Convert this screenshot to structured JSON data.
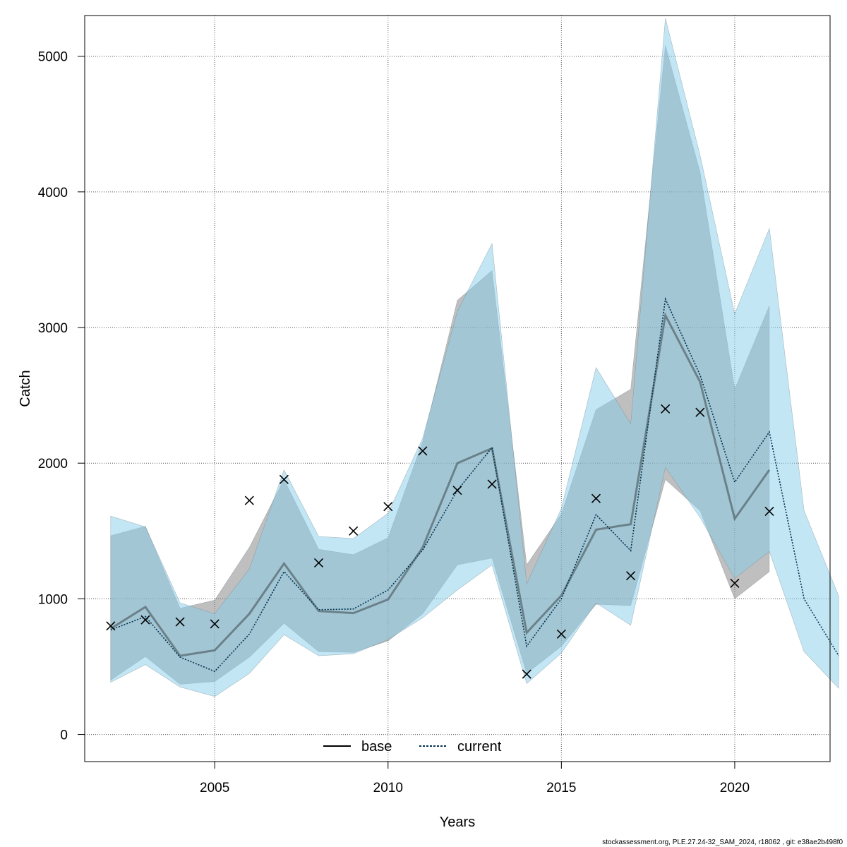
{
  "chart_data": {
    "type": "line",
    "xlabel": "Years",
    "ylabel": "Catch",
    "xlim": [
      2001.25,
      2022.75
    ],
    "ylim": [
      -200,
      5300
    ],
    "x_ticks": [
      2005,
      2010,
      2015,
      2020
    ],
    "y_ticks": [
      0,
      1000,
      2000,
      3000,
      4000,
      5000
    ],
    "grid": true,
    "legend_position": "bottom-center",
    "footer": "stockassessment.org, PLE.27.24-32_SAM_2024, r18062 , git: e38ae2b498f0",
    "colors": {
      "base_line": "#000000",
      "base_band": "#808080",
      "current_line": "#00334d",
      "current_band": "#87ceeb",
      "grid": "#555555"
    },
    "series": [
      {
        "name": "base",
        "style": "solid",
        "x": [
          2002,
          2003,
          2004,
          2005,
          2006,
          2007,
          2008,
          2009,
          2010,
          2011,
          2012,
          2013,
          2014,
          2015,
          2016,
          2017,
          2018,
          2019,
          2020,
          2021
        ],
        "values": [
          780,
          940,
          580,
          620,
          890,
          1260,
          910,
          895,
          995,
          1380,
          2000,
          2110,
          750,
          1025,
          1510,
          1550,
          3090,
          2600,
          1590,
          1950
        ],
        "lower": [
          400,
          575,
          370,
          390,
          570,
          820,
          610,
          605,
          690,
          890,
          1250,
          1300,
          450,
          650,
          960,
          950,
          1880,
          1650,
          1000,
          1200
        ],
        "upper": [
          1465,
          1535,
          930,
          990,
          1380,
          1880,
          1365,
          1325,
          1450,
          2160,
          3200,
          3420,
          1250,
          1625,
          2395,
          2545,
          5080,
          4145,
          2545,
          3160
        ]
      },
      {
        "name": "current",
        "style": "dotted",
        "x": [
          2002,
          2003,
          2004,
          2005,
          2006,
          2007,
          2008,
          2009,
          2010,
          2011,
          2012,
          2013,
          2014,
          2015,
          2016,
          2017,
          2018,
          2019,
          2020,
          2021,
          2022,
          2023
        ],
        "values": [
          770,
          870,
          570,
          465,
          740,
          1200,
          920,
          925,
          1065,
          1360,
          1800,
          2115,
          650,
          1000,
          1620,
          1355,
          3210,
          2650,
          1860,
          2230,
          1000,
          580
        ],
        "lower": [
          385,
          515,
          350,
          280,
          450,
          735,
          580,
          595,
          700,
          860,
          1065,
          1250,
          375,
          600,
          970,
          805,
          1970,
          1600,
          1150,
          1350,
          610,
          340
        ],
        "upper": [
          1610,
          1530,
          970,
          890,
          1220,
          1950,
          1460,
          1445,
          1630,
          2185,
          3120,
          3620,
          1110,
          1665,
          2705,
          2290,
          5280,
          4270,
          3100,
          3730,
          1650,
          1020
        ]
      }
    ],
    "observations": {
      "marker": "x",
      "x": [
        2002,
        2003,
        2004,
        2005,
        2006,
        2007,
        2008,
        2009,
        2010,
        2011,
        2012,
        2013,
        2014,
        2015,
        2016,
        2017,
        2018,
        2019,
        2020,
        2021
      ],
      "values": [
        800,
        845,
        830,
        815,
        1725,
        1880,
        1265,
        1500,
        1680,
        2090,
        1800,
        1845,
        445,
        740,
        1740,
        1170,
        2400,
        2375,
        1115,
        1645
      ]
    }
  }
}
